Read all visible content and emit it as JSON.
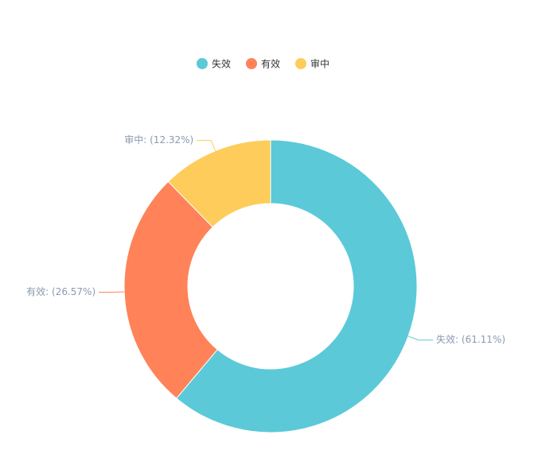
{
  "chart_data": {
    "type": "pie",
    "categories": [
      "失效",
      "有效",
      "审中"
    ],
    "values": [
      61.11,
      26.57,
      12.32
    ],
    "value_labels": [
      "失效: (61.11%)",
      "有效: (26.57%)",
      "审中: (12.32%)"
    ],
    "colors": [
      "#5bc9d8",
      "#ff8259",
      "#fdcc5a"
    ],
    "legend": "top"
  }
}
